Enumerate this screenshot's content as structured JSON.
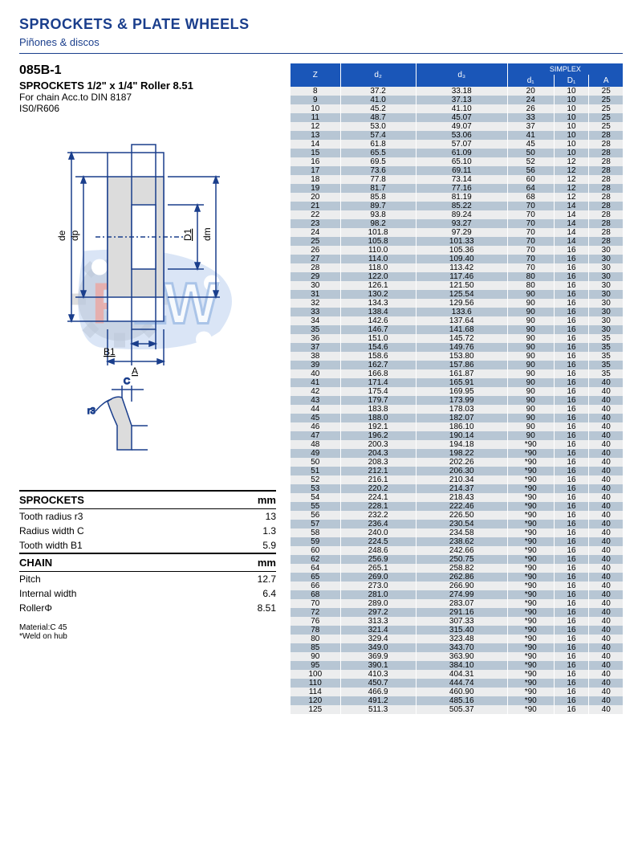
{
  "header": {
    "title": "SPROCKETS & PLATE WHEELS",
    "subtitle": "Piñones & discos"
  },
  "product": {
    "code": "085B-1",
    "spec_title": "SPROCKETS 1/2\" x 1/4\" Roller 8.51",
    "spec_line1": "For chain Acc.to DIN 8187",
    "spec_line2": "IS0/R606"
  },
  "diagram": {
    "labels": [
      "de",
      "dp",
      "D1",
      "dm",
      "B1",
      "A",
      "C",
      "r3"
    ],
    "colors": {
      "line": "#1a3e8c",
      "fill": "#d9d9d9"
    }
  },
  "sprockets_table": {
    "heading": "SPROCKETS",
    "unit": "mm",
    "rows": [
      {
        "label": "Tooth radius r3",
        "value": "13"
      },
      {
        "label": "Radius width C",
        "value": "1.3"
      },
      {
        "label": "Tooth width B1",
        "value": "5.9"
      }
    ]
  },
  "chain_table": {
    "heading": "CHAIN",
    "unit": "mm",
    "rows": [
      {
        "label": "Pitch",
        "value": "12.7"
      },
      {
        "label": "Internal width",
        "value": "6.4"
      },
      {
        "label": "RollerΦ",
        "value": "8.51"
      }
    ]
  },
  "footer": {
    "line1": "Material:C 45",
    "line2": "*Weld on hub"
  },
  "main_table": {
    "columns": [
      "Z",
      "d₂",
      "d₃",
      "d₁",
      "D₁",
      "A"
    ],
    "group_header": "SIMPLEX",
    "col_widths": [
      "14%",
      "17%",
      "17%",
      "17%",
      "17%",
      "18%"
    ],
    "header_bg": "#1a56b8",
    "header_fg": "#ffffff",
    "row_bg_odd": "#ecedee",
    "row_bg_even": "#b7c6d4",
    "rows": [
      [
        "8",
        "37.2",
        "33.18",
        "20",
        "10",
        "25"
      ],
      [
        "9",
        "41.0",
        "37.13",
        "24",
        "10",
        "25"
      ],
      [
        "10",
        "45.2",
        "41.10",
        "26",
        "10",
        "25"
      ],
      [
        "11",
        "48.7",
        "45.07",
        "33",
        "10",
        "25"
      ],
      [
        "12",
        "53.0",
        "49.07",
        "37",
        "10",
        "25"
      ],
      [
        "13",
        "57.4",
        "53.06",
        "41",
        "10",
        "28"
      ],
      [
        "14",
        "61.8",
        "57.07",
        "45",
        "10",
        "28"
      ],
      [
        "15",
        "65.5",
        "61.09",
        "50",
        "10",
        "28"
      ],
      [
        "16",
        "69.5",
        "65.10",
        "52",
        "12",
        "28"
      ],
      [
        "17",
        "73.6",
        "69.11",
        "56",
        "12",
        "28"
      ],
      [
        "18",
        "77.8",
        "73.14",
        "60",
        "12",
        "28"
      ],
      [
        "19",
        "81.7",
        "77.16",
        "64",
        "12",
        "28"
      ],
      [
        "20",
        "85.8",
        "81.19",
        "68",
        "12",
        "28"
      ],
      [
        "21",
        "89.7",
        "85.22",
        "70",
        "14",
        "28"
      ],
      [
        "22",
        "93.8",
        "89.24",
        "70",
        "14",
        "28"
      ],
      [
        "23",
        "98.2",
        "93.27",
        "70",
        "14",
        "28"
      ],
      [
        "24",
        "101.8",
        "97.29",
        "70",
        "14",
        "28"
      ],
      [
        "25",
        "105.8",
        "101.33",
        "70",
        "14",
        "28"
      ],
      [
        "26",
        "110.0",
        "105.36",
        "70",
        "16",
        "30"
      ],
      [
        "27",
        "114.0",
        "109.40",
        "70",
        "16",
        "30"
      ],
      [
        "28",
        "118.0",
        "113.42",
        "70",
        "16",
        "30"
      ],
      [
        "29",
        "122.0",
        "117.46",
        "80",
        "16",
        "30"
      ],
      [
        "30",
        "126.1",
        "121.50",
        "80",
        "16",
        "30"
      ],
      [
        "31",
        "130.2",
        "125.54",
        "90",
        "16",
        "30"
      ],
      [
        "32",
        "134.3",
        "129.56",
        "90",
        "16",
        "30"
      ],
      [
        "33",
        "138.4",
        "133.6",
        "90",
        "16",
        "30"
      ],
      [
        "34",
        "142.6",
        "137.64",
        "90",
        "16",
        "30"
      ],
      [
        "35",
        "146.7",
        "141.68",
        "90",
        "16",
        "30"
      ],
      [
        "36",
        "151.0",
        "145.72",
        "90",
        "16",
        "35"
      ],
      [
        "37",
        "154.6",
        "149.76",
        "90",
        "16",
        "35"
      ],
      [
        "38",
        "158.6",
        "153.80",
        "90",
        "16",
        "35"
      ],
      [
        "39",
        "162.7",
        "157.86",
        "90",
        "16",
        "35"
      ],
      [
        "40",
        "166.8",
        "161.87",
        "90",
        "16",
        "35"
      ],
      [
        "41",
        "171.4",
        "165.91",
        "90",
        "16",
        "40"
      ],
      [
        "42",
        "175.4",
        "169.95",
        "90",
        "16",
        "40"
      ],
      [
        "43",
        "179.7",
        "173.99",
        "90",
        "16",
        "40"
      ],
      [
        "44",
        "183.8",
        "178.03",
        "90",
        "16",
        "40"
      ],
      [
        "45",
        "188.0",
        "182.07",
        "90",
        "16",
        "40"
      ],
      [
        "46",
        "192.1",
        "186.10",
        "90",
        "16",
        "40"
      ],
      [
        "47",
        "196.2",
        "190.14",
        "90",
        "16",
        "40"
      ],
      [
        "48",
        "200.3",
        "194.18",
        "*90",
        "16",
        "40"
      ],
      [
        "49",
        "204.3",
        "198.22",
        "*90",
        "16",
        "40"
      ],
      [
        "50",
        "208.3",
        "202.26",
        "*90",
        "16",
        "40"
      ],
      [
        "51",
        "212.1",
        "206.30",
        "*90",
        "16",
        "40"
      ],
      [
        "52",
        "216.1",
        "210.34",
        "*90",
        "16",
        "40"
      ],
      [
        "53",
        "220.2",
        "214.37",
        "*90",
        "16",
        "40"
      ],
      [
        "54",
        "224.1",
        "218.43",
        "*90",
        "16",
        "40"
      ],
      [
        "55",
        "228.1",
        "222.46",
        "*90",
        "16",
        "40"
      ],
      [
        "56",
        "232.2",
        "226.50",
        "*90",
        "16",
        "40"
      ],
      [
        "57",
        "236.4",
        "230.54",
        "*90",
        "16",
        "40"
      ],
      [
        "58",
        "240.0",
        "234.58",
        "*90",
        "16",
        "40"
      ],
      [
        "59",
        "224.5",
        "238.62",
        "*90",
        "16",
        "40"
      ],
      [
        "60",
        "248.6",
        "242.66",
        "*90",
        "16",
        "40"
      ],
      [
        "62",
        "256.9",
        "250.75",
        "*90",
        "16",
        "40"
      ],
      [
        "64",
        "265.1",
        "258.82",
        "*90",
        "16",
        "40"
      ],
      [
        "65",
        "269.0",
        "262.86",
        "*90",
        "16",
        "40"
      ],
      [
        "66",
        "273.0",
        "266.90",
        "*90",
        "16",
        "40"
      ],
      [
        "68",
        "281.0",
        "274.99",
        "*90",
        "16",
        "40"
      ],
      [
        "70",
        "289.0",
        "283.07",
        "*90",
        "16",
        "40"
      ],
      [
        "72",
        "297.2",
        "291.16",
        "*90",
        "16",
        "40"
      ],
      [
        "76",
        "313.3",
        "307.33",
        "*90",
        "16",
        "40"
      ],
      [
        "78",
        "321.4",
        "315.40",
        "*90",
        "16",
        "40"
      ],
      [
        "80",
        "329.4",
        "323.48",
        "*90",
        "16",
        "40"
      ],
      [
        "85",
        "349.0",
        "343.70",
        "*90",
        "16",
        "40"
      ],
      [
        "90",
        "369.9",
        "363.90",
        "*90",
        "16",
        "40"
      ],
      [
        "95",
        "390.1",
        "384.10",
        "*90",
        "16",
        "40"
      ],
      [
        "100",
        "410.3",
        "404.31",
        "*90",
        "16",
        "40"
      ],
      [
        "110",
        "450.7",
        "444.74",
        "*90",
        "16",
        "40"
      ],
      [
        "114",
        "466.9",
        "460.90",
        "*90",
        "16",
        "40"
      ],
      [
        "120",
        "491.2",
        "485.16",
        "*90",
        "16",
        "40"
      ],
      [
        "125",
        "511.3",
        "505.37",
        "*90",
        "16",
        "40"
      ]
    ]
  }
}
